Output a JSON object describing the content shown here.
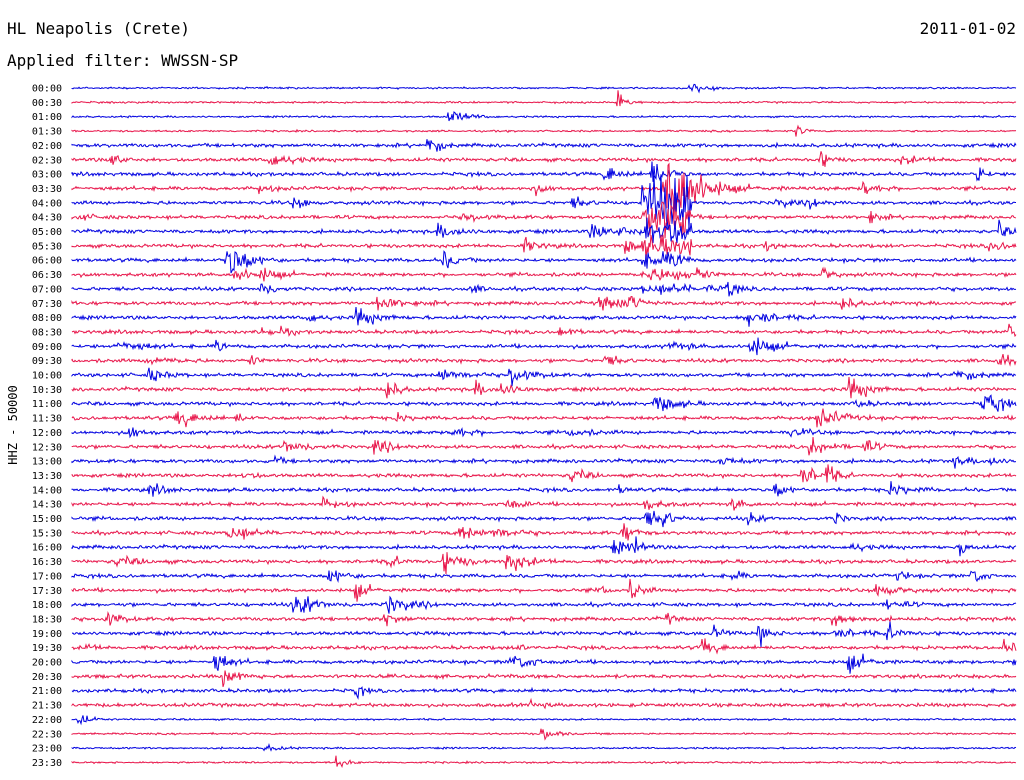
{
  "header": {
    "station": "HL Neapolis (Crete)",
    "filter": "Applied filter: WWSSN-SP",
    "date": "2011-01-02"
  },
  "chart_data": {
    "type": "line",
    "ylabel": "HHZ - 50000",
    "xlabel": "",
    "title": "",
    "traces": [
      "00:00",
      "00:30",
      "01:00",
      "01:30",
      "02:00",
      "02:30",
      "03:00",
      "03:30",
      "04:00",
      "04:30",
      "05:00",
      "05:30",
      "06:00",
      "06:30",
      "07:00",
      "07:30",
      "08:00",
      "08:30",
      "09:00",
      "09:30",
      "10:00",
      "10:30",
      "11:00",
      "11:30",
      "12:00",
      "12:30",
      "13:00",
      "13:30",
      "14:00",
      "14:30",
      "15:00",
      "15:30",
      "16:00",
      "16:30",
      "17:00",
      "17:30",
      "18:00",
      "18:30",
      "19:00",
      "19:30",
      "20:00",
      "20:30",
      "21:00",
      "21:30",
      "22:00",
      "22:30",
      "23:00",
      "23:30"
    ],
    "colors": [
      "#0000e0",
      "#e8154a"
    ],
    "major_event": {
      "trace": "03:30",
      "onset_fraction": 0.63
    },
    "grid": false
  }
}
